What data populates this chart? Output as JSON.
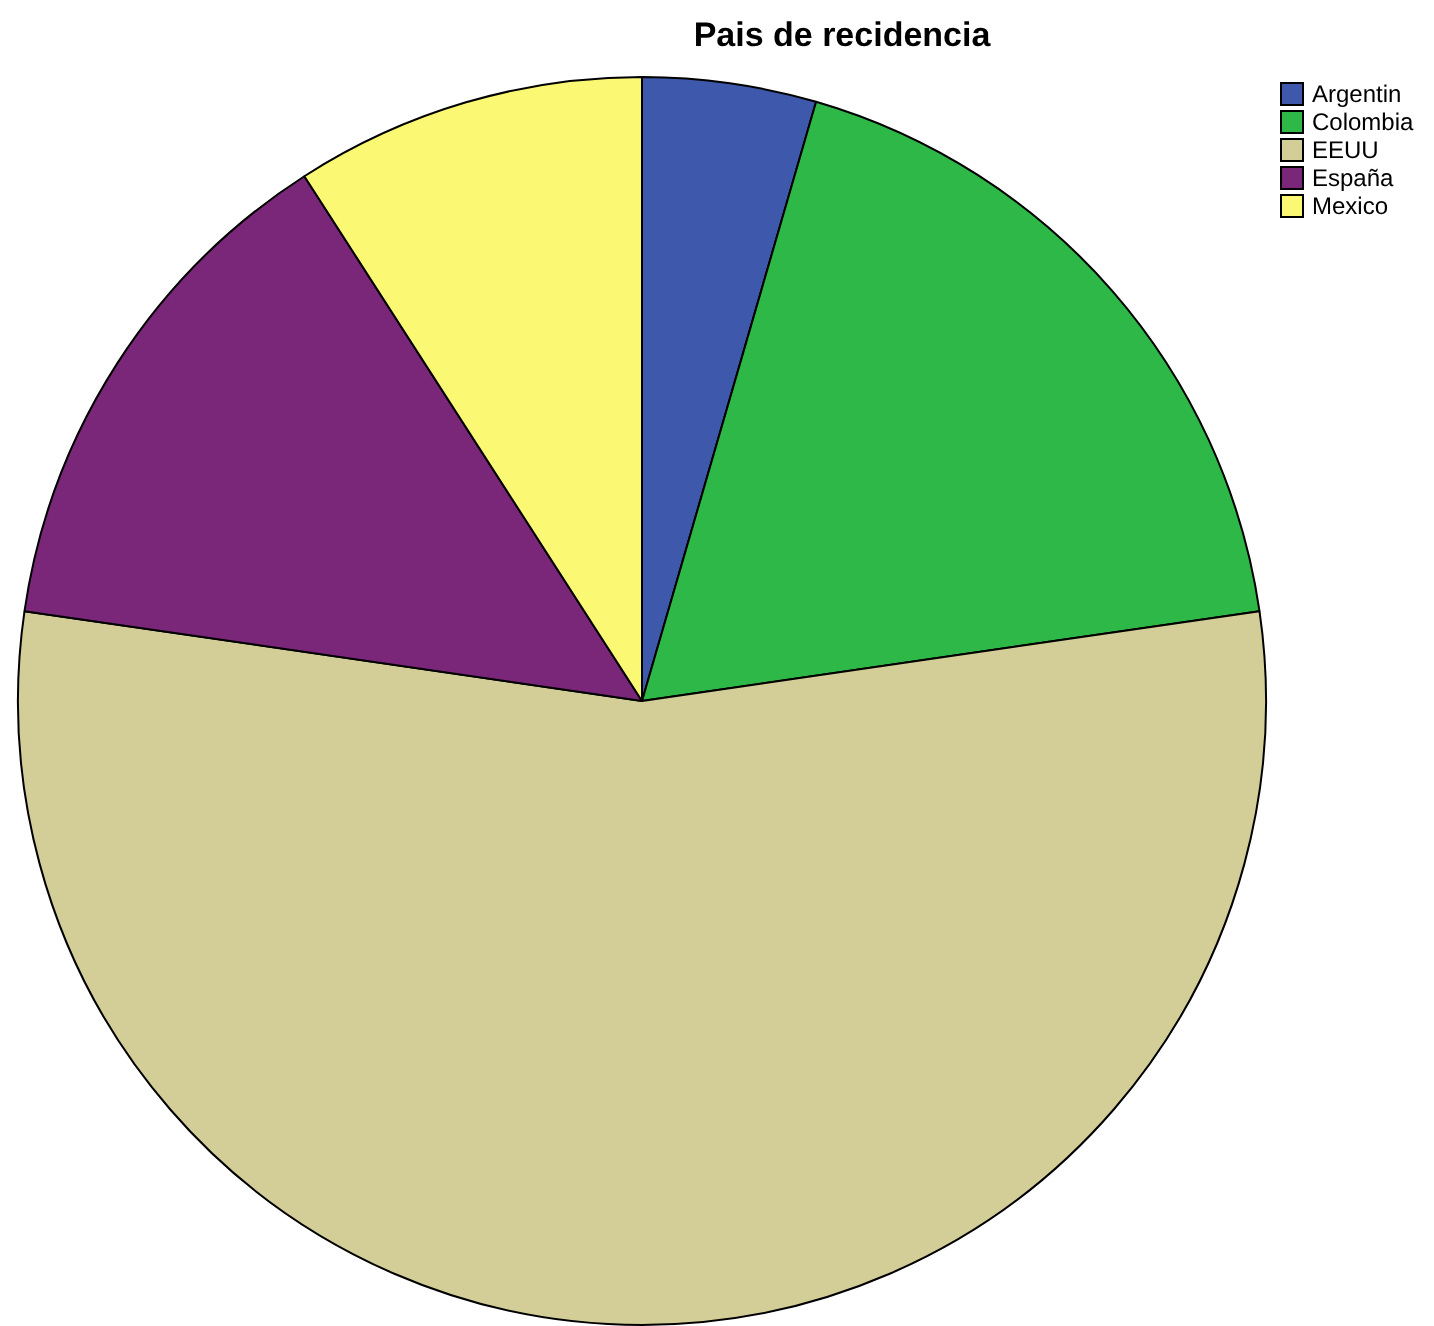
{
  "chart_data": {
    "type": "pie",
    "title": "Pais de recidencia",
    "categories": [
      "Argentin",
      "Colombia",
      "EEUU",
      "España",
      "Mexico"
    ],
    "values": [
      4.5,
      18.2,
      54.6,
      13.6,
      9.1
    ],
    "colors": [
      "#3e58ac",
      "#2eb848",
      "#d3ce97",
      "#7b2779",
      "#fbf873"
    ],
    "legend": "top right"
  }
}
